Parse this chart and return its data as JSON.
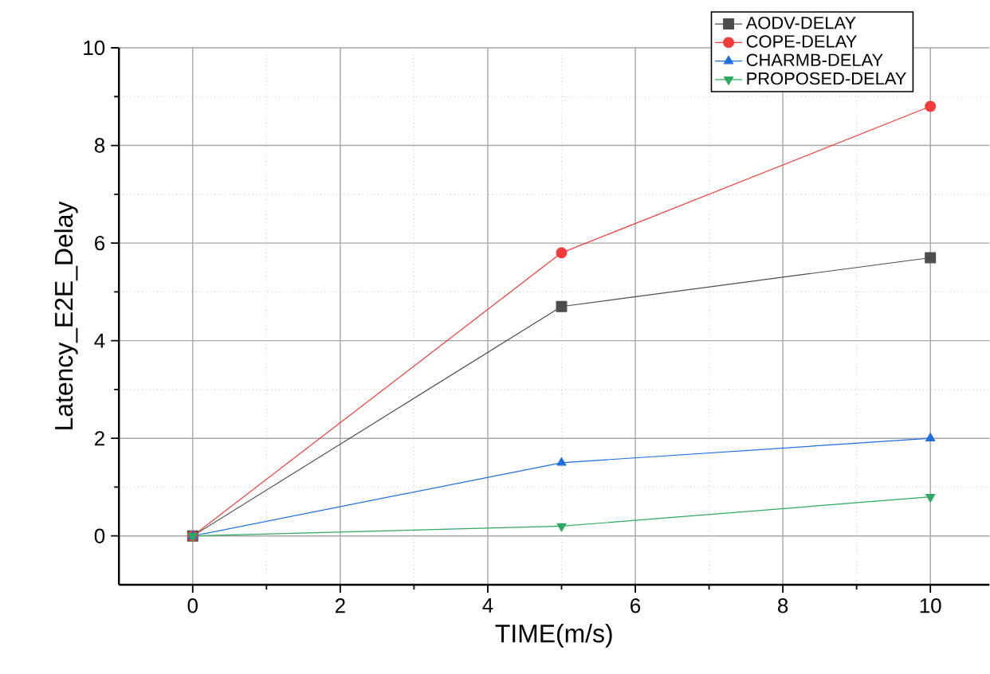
{
  "chart_data": {
    "type": "line",
    "xlabel": "TIME(m/s)",
    "ylabel": "Latency_E2E_Delay",
    "x": [
      0,
      5,
      10
    ],
    "series": [
      {
        "name": "AODV-DELAY",
        "color": "#4d4d4d",
        "marker": "square",
        "values": [
          0,
          4.7,
          5.7
        ]
      },
      {
        "name": "COPE-DELAY",
        "color": "#f03c3c",
        "marker": "circle",
        "values": [
          0,
          5.8,
          8.8
        ]
      },
      {
        "name": "CHARMB-DELAY",
        "color": "#1f6fe0",
        "marker": "triangle",
        "values": [
          0,
          1.5,
          2.0
        ]
      },
      {
        "name": "PROPOSED-DELAY",
        "color": "#2ea860",
        "marker": "triangle-down",
        "values": [
          0,
          0.2,
          0.8
        ]
      }
    ],
    "xlim": [
      -1,
      10.8
    ],
    "ylim": [
      -1,
      10
    ],
    "xticks": [
      0,
      {
        "value": 1,
        "label": null
      },
      2,
      {
        "value": 3,
        "label": null
      },
      4,
      {
        "value": 5,
        "label": null
      },
      6,
      {
        "value": 7,
        "label": null
      },
      8,
      {
        "value": 9,
        "label": null
      },
      10
    ],
    "yticks": [
      0,
      {
        "value": 1,
        "label": null
      },
      2,
      {
        "value": 3,
        "label": null
      },
      4,
      {
        "value": 5,
        "label": null
      },
      6,
      {
        "value": 7,
        "label": null
      },
      8,
      {
        "value": 9,
        "label": null
      },
      10
    ],
    "grid": true,
    "legend": "top right",
    "line_style": "solid"
  }
}
